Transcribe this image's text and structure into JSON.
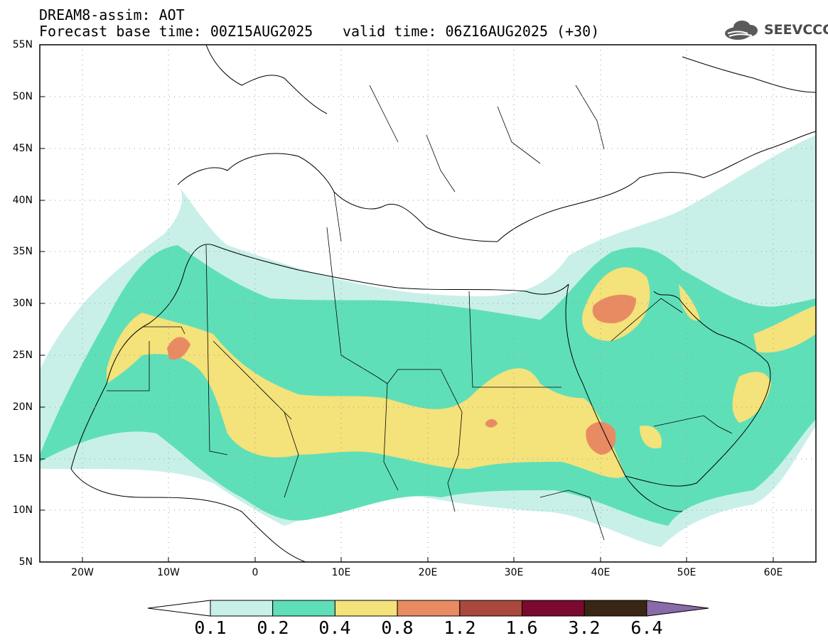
{
  "header": {
    "title": "DREAM8-assim: AOT",
    "base_time": "Forecast base time: 00Z15AUG2025",
    "valid_time": "valid time: 06Z16AUG2025 (+30)"
  },
  "logo": {
    "text": "SEEVCCC",
    "icon": "cloud-icon"
  },
  "map": {
    "lat_labels": [
      "55N",
      "50N",
      "45N",
      "40N",
      "35N",
      "30N",
      "25N",
      "20N",
      "15N",
      "10N",
      "5N"
    ],
    "lon_labels": [
      "20W",
      "10W",
      "0",
      "10E",
      "20E",
      "30E",
      "40E",
      "50E",
      "60E"
    ],
    "lon_range": [
      -25,
      65
    ],
    "lat_range": [
      5,
      55
    ]
  },
  "colorbar": {
    "levels": [
      "0.1",
      "0.2",
      "0.4",
      "0.8",
      "1.2",
      "1.6",
      "3.2",
      "6.4"
    ],
    "colors": {
      "under": "#ffffff",
      "c1": "#c8f0e8",
      "c2": "#5fdfb8",
      "c3": "#f4e27a",
      "c4": "#e98b62",
      "c5": "#a9483c",
      "c6": "#7a0a2e",
      "c7": "#3a2614",
      "over": "#8a6aa8"
    }
  }
}
